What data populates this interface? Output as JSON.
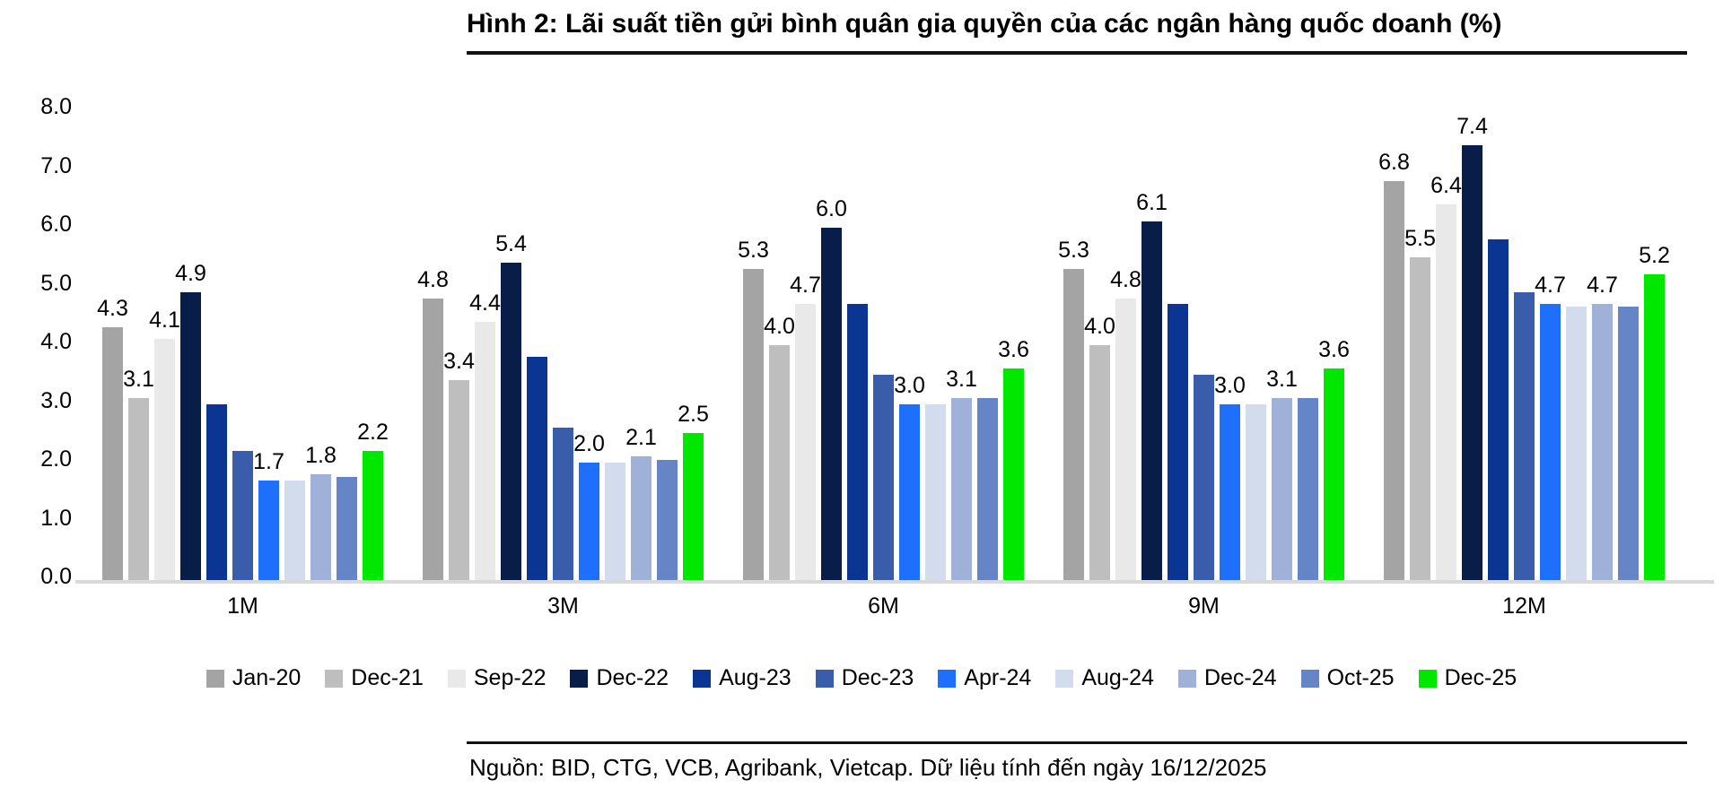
{
  "source_note": "Nguồn: BID, CTG, VCB, Agribank, Vietcap. Dữ liệu tính đến ngày 16/12/2025",
  "chart_data": {
    "type": "bar",
    "title": "Hình 2: Lãi suất tiền gửi bình quân gia quyền của các ngân hàng quốc doanh (%)",
    "categories": [
      "1M",
      "3M",
      "6M",
      "9M",
      "12M"
    ],
    "y_axis": {
      "min": 0.0,
      "max": 8.0,
      "tick_step": 1.0,
      "tick_labels": [
        "0.0",
        "1.0",
        "2.0",
        "3.0",
        "4.0",
        "5.0",
        "6.0",
        "7.0",
        "8.0"
      ]
    },
    "grid": false,
    "legend_position": "bottom",
    "series": [
      {
        "name": "Jan-20",
        "color": "#a4a4a4",
        "labeled": true,
        "values": [
          4.3,
          4.8,
          5.3,
          5.3,
          6.8
        ]
      },
      {
        "name": "Dec-21",
        "color": "#bebebe",
        "labeled": true,
        "values": [
          3.1,
          3.4,
          4.0,
          4.0,
          5.5
        ]
      },
      {
        "name": "Sep-22",
        "color": "#e9e9e9",
        "labeled": true,
        "values": [
          4.1,
          4.4,
          4.7,
          4.8,
          6.4
        ]
      },
      {
        "name": "Dec-22",
        "color": "#081d48",
        "labeled": true,
        "values": [
          4.9,
          5.4,
          6.0,
          6.1,
          7.4
        ]
      },
      {
        "name": "Aug-23",
        "color": "#0b3593",
        "labeled": false,
        "values": [
          3.0,
          3.8,
          4.7,
          4.7,
          5.8
        ]
      },
      {
        "name": "Dec-23",
        "color": "#3a5dab",
        "labeled": false,
        "values": [
          2.2,
          2.6,
          3.5,
          3.5,
          4.9
        ]
      },
      {
        "name": "Apr-24",
        "color": "#1e6ffb",
        "labeled": true,
        "values": [
          1.7,
          2.0,
          3.0,
          3.0,
          4.7
        ]
      },
      {
        "name": "Aug-24",
        "color": "#d3dcec",
        "labeled": false,
        "values": [
          1.7,
          2.0,
          3.0,
          3.0,
          4.65
        ]
      },
      {
        "name": "Dec-24",
        "color": "#9fb1d8",
        "labeled": true,
        "values": [
          1.8,
          2.1,
          3.1,
          3.1,
          4.7
        ]
      },
      {
        "name": "Oct-25",
        "color": "#6585c6",
        "labeled": false,
        "values": [
          1.75,
          2.05,
          3.1,
          3.1,
          4.65
        ]
      },
      {
        "name": "Dec-25",
        "color": "#00e800",
        "labeled": true,
        "values": [
          2.2,
          2.5,
          3.6,
          3.6,
          5.2
        ]
      }
    ]
  }
}
